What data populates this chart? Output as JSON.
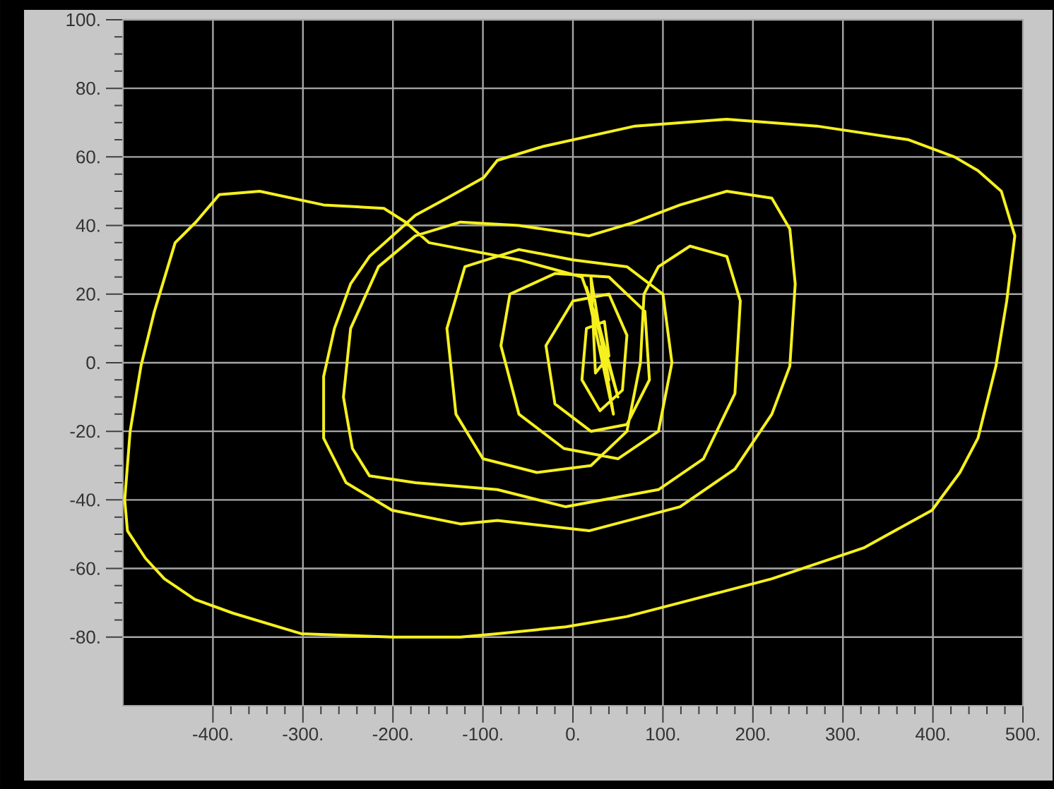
{
  "chart_data": {
    "type": "line",
    "color": "#f5f01e",
    "marker": "none",
    "grid": true,
    "xlim": [
      -500,
      500
    ],
    "ylim": [
      -100,
      100
    ],
    "xticks": [
      {
        "value": -400,
        "label": "-400."
      },
      {
        "value": -300,
        "label": "-300."
      },
      {
        "value": -200,
        "label": "-200."
      },
      {
        "value": -100,
        "label": "-100."
      },
      {
        "value": 0,
        "label": "0."
      },
      {
        "value": 100,
        "label": "100."
      },
      {
        "value": 200,
        "label": "200."
      },
      {
        "value": 300,
        "label": "300."
      },
      {
        "value": 400,
        "label": "400."
      },
      {
        "value": 500,
        "label": "500."
      }
    ],
    "yticks": [
      {
        "value": -80,
        "label": "-80."
      },
      {
        "value": -60,
        "label": "-60."
      },
      {
        "value": -40,
        "label": "-40."
      },
      {
        "value": -20,
        "label": "-20."
      },
      {
        "value": 0,
        "label": "0."
      },
      {
        "value": 20,
        "label": "20."
      },
      {
        "value": 40,
        "label": "40."
      },
      {
        "value": 60,
        "label": "60."
      },
      {
        "value": 80,
        "label": "80."
      },
      {
        "value": 100,
        "label": "100."
      }
    ],
    "x": [
      30,
      10,
      -60,
      -120,
      -160,
      -186,
      -210,
      -277,
      -348,
      -393,
      -419,
      -442,
      -465,
      -480,
      -492,
      -498,
      -495,
      -475,
      -454,
      -420,
      -378,
      -302,
      -200,
      -125,
      -84,
      -8,
      60,
      119,
      221,
      323,
      399,
      430,
      450,
      470,
      482,
      491,
      476,
      450,
      424,
      373,
      271,
      171,
      69,
      -34,
      -84,
      -99,
      -140,
      -175,
      -226,
      -247,
      -265,
      -277,
      -277,
      -252,
      -201,
      -125,
      -84,
      18,
      119,
      180,
      221,
      241,
      247,
      241,
      221,
      171,
      119,
      69,
      18,
      -60,
      -125,
      -175,
      -216,
      -247,
      -255,
      -245,
      -226,
      -175,
      -84,
      -8,
      95,
      145,
      180,
      186,
      171,
      130,
      95,
      79,
      75,
      60,
      20,
      -40,
      -100,
      -130,
      -140,
      -120,
      -60,
      0,
      60,
      100,
      110,
      95,
      50,
      -10,
      -60,
      -80,
      -70,
      -20,
      40,
      80,
      85,
      60,
      20,
      -20,
      -30,
      0,
      40,
      60,
      55,
      30,
      10,
      15,
      35,
      40,
      25,
      20,
      45,
      15,
      50,
      25,
      40,
      30
    ],
    "values": [
      10,
      25,
      30,
      33,
      35,
      41,
      45,
      46,
      50,
      49,
      41,
      35,
      15,
      -1,
      -20,
      -40,
      -49,
      -57,
      -63,
      -69,
      -73,
      -79,
      -80,
      -80,
      -79,
      -77,
      -74,
      -70,
      -63,
      -54,
      -43,
      -32,
      -22,
      -1,
      18,
      37,
      50,
      56,
      60,
      65,
      69,
      71,
      69,
      63,
      59,
      54,
      48,
      43,
      31,
      23,
      10,
      -4,
      -22,
      -35,
      -43,
      -47,
      -46,
      -49,
      -42,
      -31,
      -15,
      -1,
      23,
      39,
      48,
      50,
      46,
      41,
      37,
      40,
      41,
      37,
      28,
      10,
      -10,
      -25,
      -33,
      -35,
      -37,
      -42,
      -37,
      -28,
      -9,
      18,
      31,
      34,
      28,
      20,
      0,
      -20,
      -30,
      -32,
      -28,
      -15,
      10,
      28,
      33,
      30,
      28,
      20,
      0,
      -20,
      -28,
      -25,
      -15,
      5,
      20,
      26,
      25,
      15,
      -5,
      -18,
      -20,
      -12,
      5,
      18,
      20,
      8,
      -8,
      -14,
      -5,
      10,
      12,
      2,
      -3,
      25,
      -15,
      22,
      -10,
      15,
      -5,
      5
    ]
  }
}
